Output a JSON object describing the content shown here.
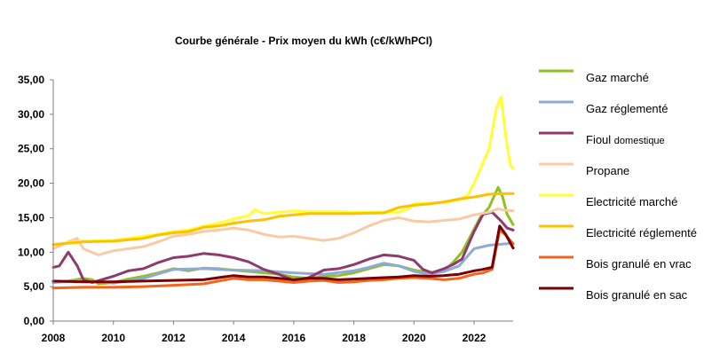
{
  "chart_data": {
    "type": "line",
    "title": "Courbe générale - Prix moyen du kWh (c€/kWhPCI)",
    "xlabel": "",
    "ylabel": "",
    "xlim": [
      2008,
      2023.3
    ],
    "ylim": [
      0,
      35
    ],
    "x_ticks": [
      "2008",
      "2010",
      "2012",
      "2014",
      "2016",
      "2018",
      "2020",
      "2022"
    ],
    "y_ticks": [
      "0,00",
      "5,00",
      "10,00",
      "15,00",
      "20,00",
      "25,00",
      "30,00",
      "35,00"
    ],
    "grid": false,
    "legend_position": "right",
    "series": [
      {
        "name": "Gaz marché",
        "color": "#8dc21f",
        "x": [
          2008,
          2008.5,
          2009,
          2009.3,
          2009.5,
          2010,
          2010.5,
          2011,
          2011.5,
          2012,
          2012.5,
          2013,
          2013.5,
          2014,
          2014.5,
          2015,
          2015.5,
          2016,
          2016.5,
          2017,
          2017.5,
          2018,
          2018.5,
          2019,
          2019.5,
          2020,
          2020.5,
          2021,
          2021.3,
          2021.6,
          2021.9,
          2022.2,
          2022.5,
          2022.8,
          2022.95,
          2023.1,
          2023.3
        ],
        "y": [
          5.6,
          5.8,
          6.2,
          6.0,
          5.4,
          5.6,
          6.1,
          6.5,
          7.0,
          7.6,
          7.3,
          7.7,
          7.6,
          7.4,
          7.2,
          7.0,
          6.8,
          6.4,
          6.2,
          6.5,
          6.6,
          7.0,
          7.6,
          8.2,
          8.0,
          7.4,
          7.0,
          7.3,
          8.5,
          10.0,
          12.5,
          15.0,
          16.5,
          19.4,
          18.0,
          15.5,
          14.0
        ]
      },
      {
        "name": "Gaz réglementé",
        "color": "#8eaadb",
        "x": [
          2008,
          2009,
          2010,
          2011,
          2012,
          2013,
          2014,
          2015,
          2016,
          2017,
          2018,
          2018.5,
          2019,
          2019.5,
          2020,
          2020.5,
          2021,
          2021.5,
          2021.8,
          2022,
          2022.5,
          2023,
          2023.3
        ],
        "y": [
          5.6,
          5.9,
          5.5,
          6.2,
          7.5,
          7.6,
          7.4,
          7.3,
          7.0,
          6.8,
          7.3,
          7.8,
          8.4,
          8.0,
          7.2,
          6.8,
          7.2,
          8.0,
          9.5,
          10.5,
          11.0,
          11.2,
          11.3
        ]
      },
      {
        "name": "Fioul domestique",
        "color": "#8e3a6e",
        "x": [
          2008,
          2008.2,
          2008.5,
          2008.8,
          2009,
          2009.3,
          2009.6,
          2010,
          2010.5,
          2011,
          2011.5,
          2012,
          2012.5,
          2013,
          2013.5,
          2014,
          2014.5,
          2015,
          2015.5,
          2016,
          2016.5,
          2017,
          2017.5,
          2018,
          2018.5,
          2019,
          2019.5,
          2020,
          2020.3,
          2020.6,
          2021,
          2021.3,
          2021.6,
          2022,
          2022.3,
          2022.6,
          2022.9,
          2023.1,
          2023.3
        ],
        "y": [
          7.8,
          8.0,
          10.0,
          8.0,
          6.0,
          5.6,
          6.0,
          6.5,
          7.3,
          7.6,
          8.5,
          9.2,
          9.4,
          9.8,
          9.6,
          9.2,
          8.6,
          7.5,
          6.8,
          5.9,
          6.3,
          7.4,
          7.6,
          8.2,
          9.0,
          9.6,
          9.4,
          8.8,
          7.5,
          7.0,
          7.6,
          8.2,
          9.0,
          13.0,
          15.5,
          15.8,
          14.5,
          13.5,
          13.2
        ]
      },
      {
        "name": "Propane",
        "color": "#f8cba4",
        "x": [
          2008,
          2008.5,
          2008.8,
          2009,
          2009.5,
          2010,
          2010.5,
          2011,
          2011.5,
          2012,
          2012.5,
          2013,
          2013.5,
          2014,
          2014.5,
          2015,
          2015.5,
          2016,
          2016.5,
          2017,
          2017.5,
          2018,
          2018.5,
          2019,
          2019.5,
          2020,
          2020.5,
          2021,
          2021.5,
          2022,
          2022.5,
          2022.8,
          2023,
          2023.3
        ],
        "y": [
          10.5,
          11.5,
          12.0,
          10.5,
          9.6,
          10.2,
          10.5,
          10.8,
          11.5,
          12.3,
          12.6,
          13.0,
          13.2,
          13.5,
          13.2,
          12.6,
          12.2,
          12.3,
          12.0,
          11.7,
          12.0,
          12.8,
          13.8,
          14.6,
          15.0,
          14.5,
          14.4,
          14.6,
          14.8,
          15.4,
          15.8,
          16.3,
          16.1,
          16.0
        ]
      },
      {
        "name": "Electricité marché",
        "color": "#ffff33",
        "x": [
          2008,
          2008.7,
          2009,
          2010,
          2011,
          2011.5,
          2012,
          2012.5,
          2013,
          2013.5,
          2014,
          2014.5,
          2014.7,
          2015,
          2015.5,
          2016,
          2016.5,
          2017,
          2017.5,
          2018,
          2018.5,
          2019,
          2019.5,
          2019.8,
          2020,
          2020.5,
          2021,
          2021.5,
          2021.8,
          2022,
          2022.2,
          2022.5,
          2022.75,
          2022.9,
          2023.05,
          2023.2,
          2023.3
        ],
        "y": [
          11.1,
          11.5,
          11.6,
          11.7,
          12.3,
          12.6,
          13.0,
          13.2,
          13.8,
          14.2,
          14.8,
          15.3,
          16.2,
          15.6,
          15.8,
          16.0,
          15.9,
          15.9,
          15.9,
          15.8,
          15.8,
          15.8,
          15.8,
          16.3,
          17.0,
          17.1,
          17.2,
          17.6,
          18.3,
          20.0,
          22.0,
          25.0,
          31.0,
          32.5,
          27.0,
          22.6,
          22.2
        ]
      },
      {
        "name": "Electricité réglementé",
        "color": "#ffc000",
        "x": [
          2008,
          2009,
          2010,
          2011,
          2011.5,
          2012,
          2012.5,
          2013,
          2013.5,
          2014,
          2014.5,
          2015,
          2015.5,
          2016,
          2016.5,
          2017,
          2018,
          2019,
          2019.5,
          2020,
          2020.5,
          2021,
          2021.5,
          2022,
          2022.5,
          2023,
          2023.3
        ],
        "y": [
          11.1,
          11.5,
          11.6,
          12.0,
          12.5,
          12.8,
          13.0,
          13.6,
          13.8,
          14.2,
          14.5,
          14.7,
          15.2,
          15.4,
          15.6,
          15.6,
          15.6,
          15.7,
          16.5,
          16.8,
          17.0,
          17.3,
          17.7,
          18.0,
          18.4,
          18.5,
          18.5
        ]
      },
      {
        "name": "Bois granulé en vrac",
        "color": "#f4651c",
        "x": [
          2008,
          2009,
          2010,
          2011,
          2012,
          2013,
          2014,
          2014.5,
          2015,
          2015.5,
          2016,
          2016.5,
          2017,
          2017.5,
          2018,
          2018.5,
          2019,
          2019.5,
          2020,
          2020.5,
          2021,
          2021.5,
          2022,
          2022.3,
          2022.6,
          2022.85,
          2023.05,
          2023.3
        ],
        "y": [
          4.8,
          4.9,
          4.9,
          5.0,
          5.2,
          5.4,
          6.2,
          6.0,
          6.0,
          5.8,
          5.6,
          5.8,
          5.9,
          5.6,
          5.7,
          5.9,
          6.0,
          6.2,
          6.3,
          6.2,
          6.0,
          6.2,
          6.8,
          7.0,
          7.5,
          13.2,
          12.5,
          11.2
        ]
      },
      {
        "name": "Bois granulé en sac",
        "color": "#7b0000",
        "x": [
          2008,
          2009,
          2010,
          2011,
          2012,
          2013,
          2014,
          2014.5,
          2015,
          2015.5,
          2016,
          2016.5,
          2017,
          2017.5,
          2018,
          2018.5,
          2019,
          2019.5,
          2020,
          2020.5,
          2021,
          2021.5,
          2022,
          2022.3,
          2022.6,
          2022.85,
          2023.05,
          2023.3
        ],
        "y": [
          5.8,
          5.7,
          5.7,
          5.8,
          5.9,
          6.0,
          6.6,
          6.4,
          6.4,
          6.2,
          6.0,
          6.2,
          6.2,
          6.0,
          6.1,
          6.2,
          6.3,
          6.4,
          6.6,
          6.5,
          6.6,
          6.8,
          7.3,
          7.5,
          7.8,
          13.8,
          12.6,
          10.6
        ]
      }
    ]
  }
}
